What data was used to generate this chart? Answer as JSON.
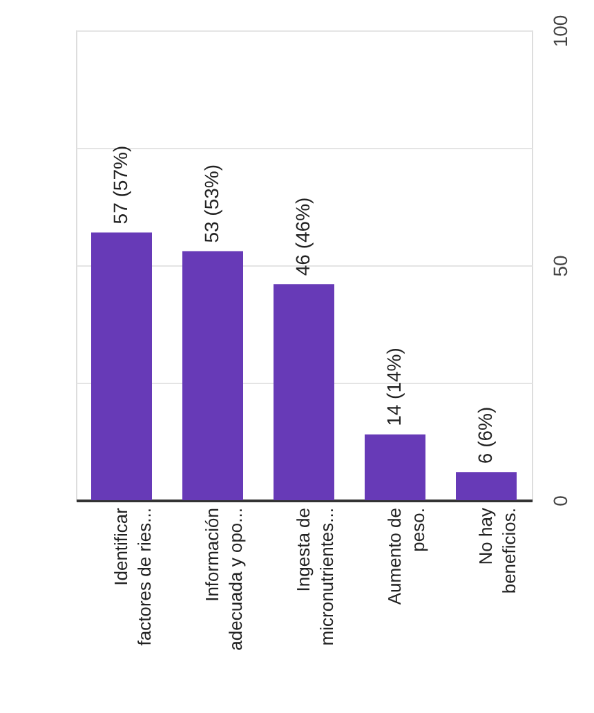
{
  "chart_data": {
    "type": "bar",
    "categories": [
      "Identificar\nfactores de ries...",
      "Información\nadecuada y opo...",
      "Ingesta de\nmicronutrientes...",
      "Aumento de\npeso.",
      "No hay\nbeneficios."
    ],
    "values": [
      57,
      53,
      46,
      14,
      6
    ],
    "value_labels": [
      "57 (57%)",
      "53 (53%)",
      "46 (46%)",
      "14 (14%)",
      "6 (6%)"
    ],
    "color": "#673ab7",
    "ylim": [
      0,
      100
    ],
    "yticks": [
      0,
      {
        "value": 25,
        "label": null
      },
      50,
      {
        "value": 75,
        "label": null
      },
      100
    ],
    "grid": "y"
  }
}
